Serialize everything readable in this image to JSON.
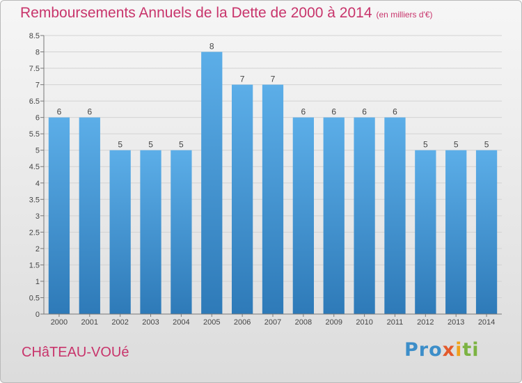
{
  "chart_data": {
    "type": "bar",
    "title": "Remboursements Annuels de la Dette de 2000 à 2014",
    "subtitle": "(en milliers d'€)",
    "categories": [
      "2000",
      "2001",
      "2002",
      "2003",
      "2004",
      "2005",
      "2006",
      "2007",
      "2008",
      "2009",
      "2010",
      "2011",
      "2012",
      "2013",
      "2014"
    ],
    "values": [
      6,
      6,
      5,
      5,
      5,
      8,
      7,
      7,
      6,
      6,
      6,
      6,
      5,
      5,
      5
    ],
    "data_labels": [
      "6",
      "6",
      "5",
      "5",
      "5",
      "8",
      "7",
      "7",
      "6",
      "6",
      "6",
      "6",
      "5",
      "5",
      "5"
    ],
    "yticks": [
      "0",
      "0.5",
      "1",
      "1.5",
      "2",
      "2.5",
      "3",
      "3.5",
      "4",
      "4.5",
      "5",
      "5.5",
      "6",
      "6.5",
      "7",
      "7.5",
      "8",
      "8.5"
    ],
    "ylim": [
      0,
      8.5
    ],
    "grid": true,
    "bar_color_top": "#5caee8",
    "bar_color_bottom": "#2e7ab8"
  },
  "footer": {
    "town": "CHâTEAU-VOUé",
    "logo": [
      "Pro",
      "x",
      "i",
      "ti"
    ]
  }
}
